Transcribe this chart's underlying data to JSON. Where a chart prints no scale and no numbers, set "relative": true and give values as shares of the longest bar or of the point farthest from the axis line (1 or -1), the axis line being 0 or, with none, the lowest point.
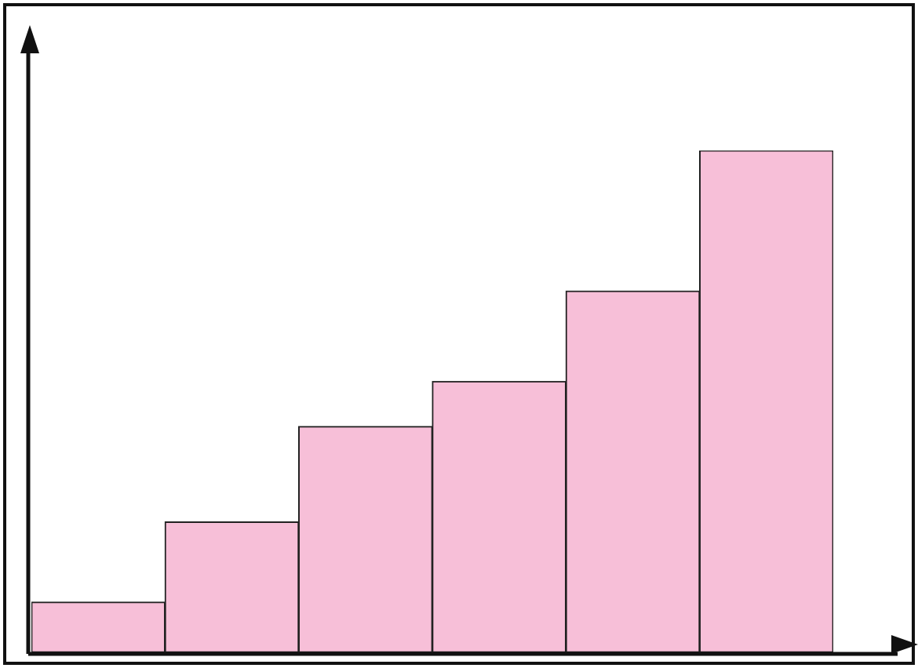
{
  "chart_data": {
    "type": "bar",
    "relative": true,
    "categories": [
      null,
      null,
      null,
      null,
      null,
      null
    ],
    "values": [
      0.1,
      0.26,
      0.45,
      0.54,
      0.72,
      1
    ],
    "color": "#f7bfd8",
    "grid": false,
    "legend": false
  }
}
